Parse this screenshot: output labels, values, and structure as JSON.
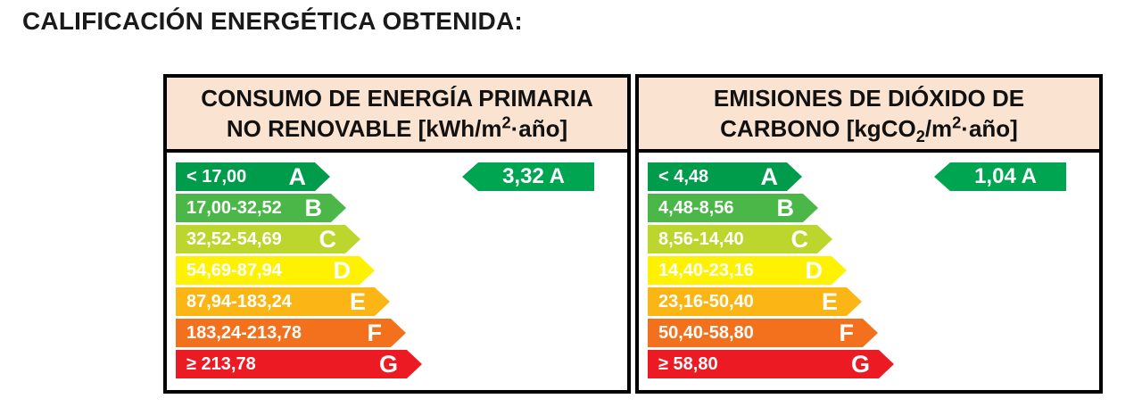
{
  "title": "CALIFICACIÓN ENERGÉTICA OBTENIDA:",
  "colors": {
    "header_bg": "#FAE4D1",
    "border": "#000000",
    "indicator_green": "#00A551"
  },
  "panels": [
    {
      "id": "primary-energy",
      "header": {
        "line1": "CONSUMO DE ENERGÍA PRIMARIA",
        "line2_pre": "NO RENOVABLE [kWh/m",
        "line2_sup": "2",
        "line2_post": "·año]"
      },
      "rows": [
        {
          "range": "< 17,00",
          "letter": "A",
          "color": "#009C4B"
        },
        {
          "range": "17,00-32,52",
          "letter": "B",
          "color": "#4CB749"
        },
        {
          "range": "32,52-54,69",
          "letter": "C",
          "color": "#BDD62E"
        },
        {
          "range": "54,69-87,94",
          "letter": "D",
          "color": "#FEF102"
        },
        {
          "range": "87,94-183,24",
          "letter": "E",
          "color": "#FBB616"
        },
        {
          "range": "183,24-213,78",
          "letter": "F",
          "color": "#F3701D"
        },
        {
          "range": "≥ 213,78",
          "letter": "G",
          "color": "#EC1B23"
        }
      ],
      "indicator": {
        "label": "3,32 A",
        "value": "3,32",
        "letter": "A",
        "color": "#00A551"
      }
    },
    {
      "id": "co2-emissions",
      "header": {
        "line1": "EMISIONES DE DIÓXIDO DE",
        "line2_pre": "CARBONO [kgCO",
        "line2_sub": "2",
        "line2_mid": "/m",
        "line2_sup": "2",
        "line2_post": "·año]"
      },
      "rows": [
        {
          "range": "< 4,48",
          "letter": "A",
          "color": "#009C4B"
        },
        {
          "range": "4,48-8,56",
          "letter": "B",
          "color": "#4CB749"
        },
        {
          "range": "8,56-14,40",
          "letter": "C",
          "color": "#BDD62E"
        },
        {
          "range": "14,40-23,16",
          "letter": "D",
          "color": "#FEF102"
        },
        {
          "range": "23,16-50,40",
          "letter": "E",
          "color": "#FBB616"
        },
        {
          "range": "50,40-58,80",
          "letter": "F",
          "color": "#F3701D"
        },
        {
          "range": "≥ 58,80",
          "letter": "G",
          "color": "#EC1B23"
        }
      ],
      "indicator": {
        "label": "1,04 A",
        "value": "1,04",
        "letter": "A",
        "color": "#00A551"
      }
    }
  ],
  "chart_data": [
    {
      "type": "bar",
      "title": "CONSUMO DE ENERGÍA PRIMARIA NO RENOVABLE [kWh/m2·año]",
      "unit": "kWh/m2·año",
      "categories": [
        "A",
        "B",
        "C",
        "D",
        "E",
        "F",
        "G"
      ],
      "ranges": [
        "< 17,00",
        "17,00-32,52",
        "32,52-54,69",
        "54,69-87,94",
        "87,94-183,24",
        "183,24-213,78",
        "≥ 213,78"
      ],
      "obtained": {
        "value": 3.32,
        "rating": "A"
      }
    },
    {
      "type": "bar",
      "title": "EMISIONES DE DIÓXIDO DE CARBONO [kgCO2/m2·año]",
      "unit": "kgCO2/m2·año",
      "categories": [
        "A",
        "B",
        "C",
        "D",
        "E",
        "F",
        "G"
      ],
      "ranges": [
        "< 4,48",
        "4,48-8,56",
        "8,56-14,40",
        "14,40-23,16",
        "23,16-50,40",
        "50,40-58,80",
        "≥ 58,80"
      ],
      "obtained": {
        "value": 1.04,
        "rating": "A"
      }
    }
  ]
}
